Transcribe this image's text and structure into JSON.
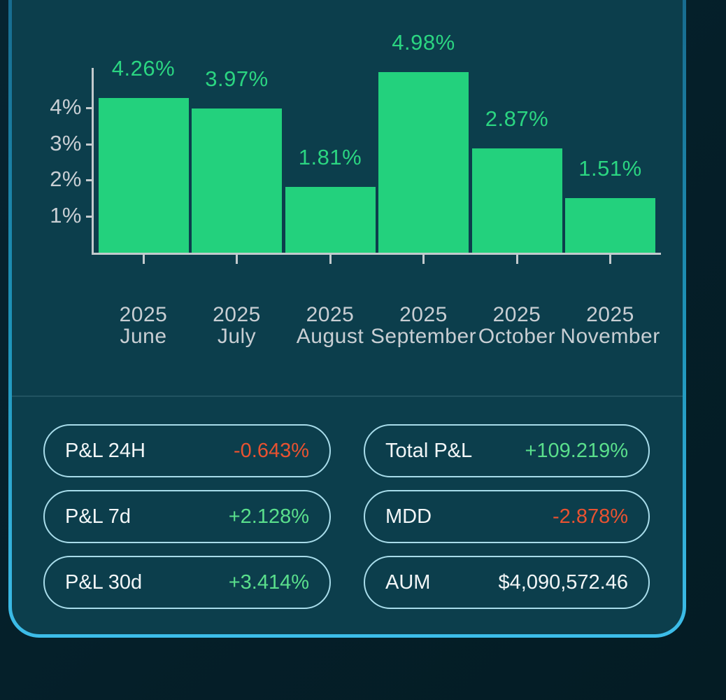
{
  "colors": {
    "card_bg": "#0c3e4c",
    "card_border_top": "#17678a",
    "card_border_mid": "#1e93b8",
    "card_border_bottom": "#3dbde9",
    "bar_green": "#23d17d",
    "bar_label_green": "#2bd581",
    "axis_gray": "#c3cacd",
    "tick_label_gray": "#c8ced3",
    "pill_border_cyan": "#a8dcea",
    "positive_green": "#5adf8c",
    "negative_red": "#e85231",
    "text_white": "#f2f6f7"
  },
  "chart_data": {
    "type": "bar",
    "title": "",
    "xlabel": "",
    "ylabel": "",
    "categories": [
      "2025 June",
      "2025 July",
      "2025 August",
      "2025 September",
      "2025 October",
      "2025 November"
    ],
    "category_lines": [
      [
        "2025",
        "June"
      ],
      [
        "2025",
        "July"
      ],
      [
        "2025",
        "August"
      ],
      [
        "2025",
        "September"
      ],
      [
        "2025",
        "October"
      ],
      [
        "2025",
        "November"
      ]
    ],
    "values": [
      4.26,
      3.97,
      1.81,
      4.98,
      2.87,
      1.51
    ],
    "value_labels": [
      "4.26%",
      "3.97%",
      "1.81%",
      "4.98%",
      "2.87%",
      "1.51%"
    ],
    "y_ticks": [
      1,
      2,
      3,
      4
    ],
    "y_tick_labels": [
      "1%",
      "2%",
      "3%",
      "4%"
    ],
    "ylim": [
      0,
      5.1
    ],
    "grid": false,
    "legend": false,
    "bar_color": "#23d17d"
  },
  "stats": {
    "left": [
      {
        "label": "P&L 24H",
        "value": "-0.643%",
        "sentiment": "negative"
      },
      {
        "label": "P&L 7d",
        "value": "+2.128%",
        "sentiment": "positive"
      },
      {
        "label": "P&L 30d",
        "value": "+3.414%",
        "sentiment": "positive"
      }
    ],
    "right": [
      {
        "label": "Total P&L",
        "value": "+109.219%",
        "sentiment": "positive"
      },
      {
        "label": "MDD",
        "value": "-2.878%",
        "sentiment": "negative"
      },
      {
        "label": "AUM",
        "value": "$4,090,572.46",
        "sentiment": "neutral"
      }
    ]
  }
}
